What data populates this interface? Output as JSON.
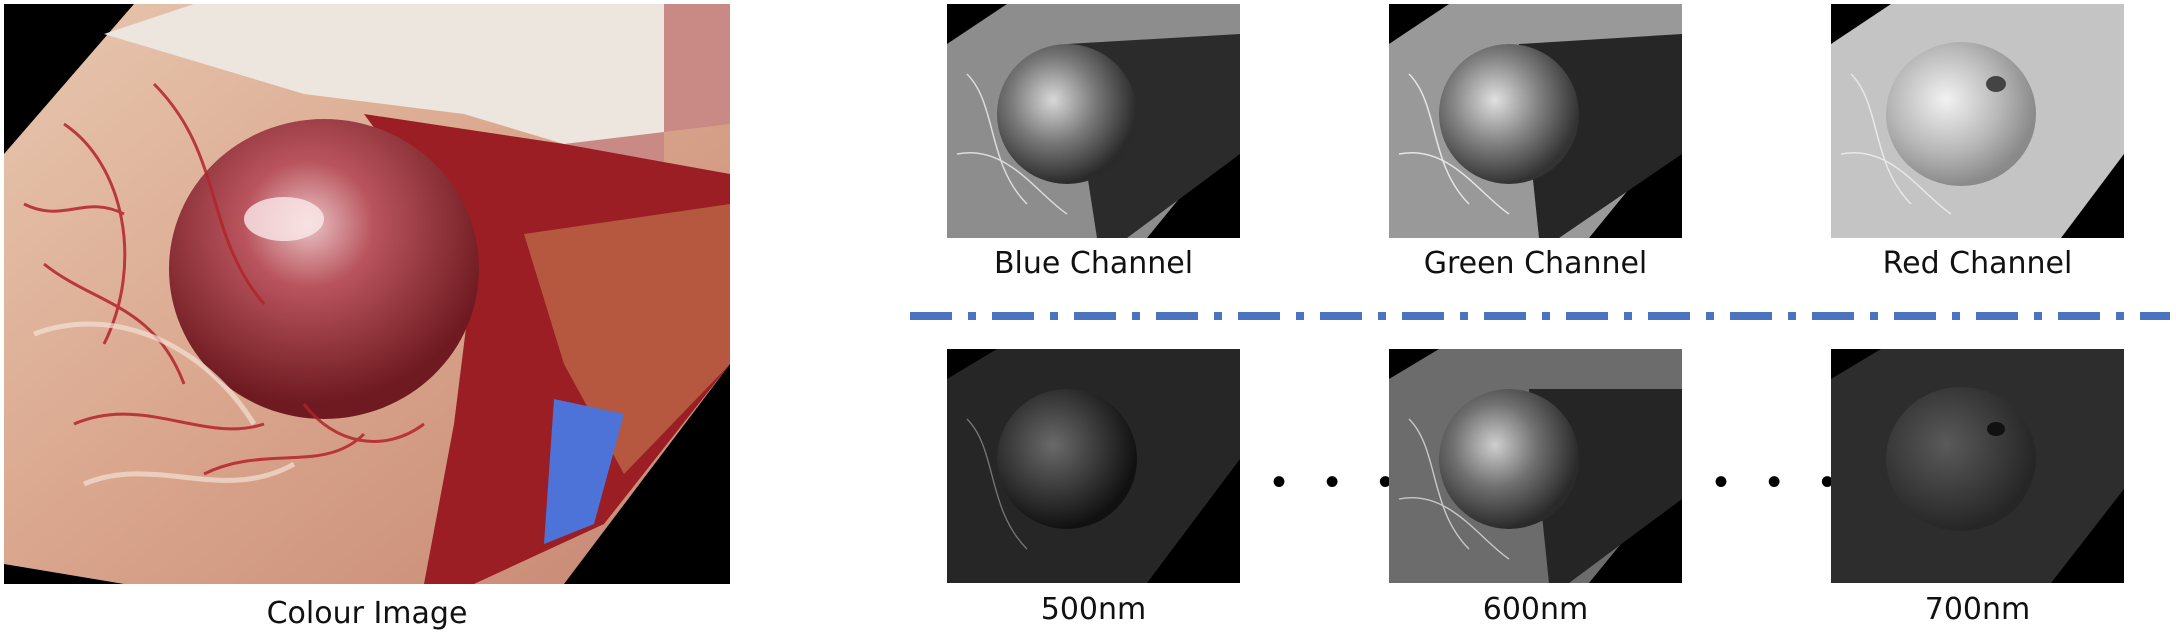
{
  "colour_image": {
    "caption": "Colour Image"
  },
  "rgb_channels": [
    {
      "caption": "Blue Channel"
    },
    {
      "caption": "Green Channel"
    },
    {
      "caption": "Red Channel"
    }
  ],
  "wavelengths": [
    {
      "caption": "500nm"
    },
    {
      "caption": "600nm"
    },
    {
      "caption": "700nm"
    }
  ],
  "ellipsis": "• • •",
  "colors": {
    "divider": "#4a73c0",
    "tissue": "#a8333b",
    "background": "#000000"
  }
}
